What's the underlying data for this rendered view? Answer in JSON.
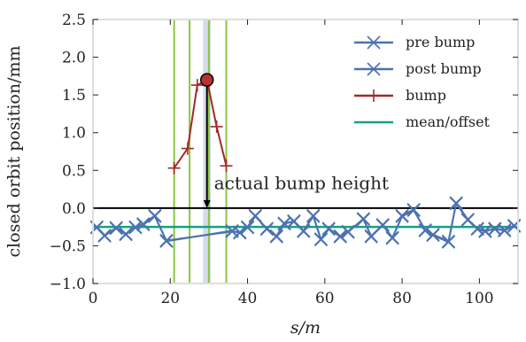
{
  "chart_data": {
    "type": "line",
    "xlabel": "s/m",
    "ylabel": "closed orbit position/mm",
    "xlim": [
      0,
      110
    ],
    "ylim": [
      -1.0,
      2.5
    ],
    "xticks": [
      0,
      20,
      40,
      60,
      80,
      100
    ],
    "yticks": [
      -1.0,
      -0.5,
      0.0,
      0.5,
      1.0,
      1.5,
      2.0,
      2.5
    ],
    "xtick_labels": [
      "0",
      "20",
      "40",
      "60",
      "80",
      "100"
    ],
    "ytick_labels": [
      "−1.0",
      "−0.5",
      "0.0",
      "0.5",
      "1.0",
      "1.5",
      "2.0",
      "2.5"
    ],
    "grid": false,
    "legend_position": "top-right",
    "series": [
      {
        "name": "pre bump",
        "color": "#4c72b0",
        "marker": "x",
        "x": [
          1,
          3,
          6,
          8.5,
          11,
          13,
          16,
          19,
          36,
          38,
          40,
          42,
          45,
          47.5,
          49.5,
          52,
          54.5,
          57,
          59,
          61,
          64,
          66,
          70,
          72,
          75,
          77.5,
          80,
          83,
          86,
          88,
          92,
          94,
          97,
          99.5,
          101.5,
          104,
          106.5,
          109
        ],
        "y": [
          -0.25,
          -0.36,
          -0.27,
          -0.35,
          -0.25,
          -0.21,
          -0.1,
          -0.44,
          -0.3,
          -0.33,
          -0.25,
          -0.1,
          -0.28,
          -0.37,
          -0.2,
          -0.18,
          -0.31,
          -0.1,
          -0.42,
          -0.27,
          -0.38,
          -0.32,
          -0.14,
          -0.38,
          -0.22,
          -0.4,
          -0.1,
          -0.02,
          -0.3,
          -0.36,
          -0.45,
          0.07,
          -0.15,
          -0.28,
          -0.31,
          -0.27,
          -0.3,
          -0.23
        ]
      },
      {
        "name": "post bump",
        "color": "#4c72b0",
        "marker": "x",
        "x": [
          1,
          3,
          6,
          8.5,
          11,
          13,
          16,
          19,
          36,
          38,
          40,
          42,
          45,
          47.5,
          49.5,
          52,
          54.5,
          57,
          59,
          61,
          64,
          66,
          70,
          72,
          75,
          77.5,
          80,
          83,
          86,
          88,
          92,
          94,
          97,
          99.5,
          101.5,
          104,
          106.5,
          109
        ],
        "y": [
          -0.26,
          -0.37,
          -0.26,
          -0.34,
          -0.26,
          -0.22,
          -0.11,
          -0.43,
          -0.31,
          -0.32,
          -0.26,
          -0.11,
          -0.27,
          -0.38,
          -0.21,
          -0.17,
          -0.3,
          -0.11,
          -0.41,
          -0.28,
          -0.37,
          -0.31,
          -0.15,
          -0.37,
          -0.23,
          -0.39,
          -0.11,
          -0.03,
          -0.29,
          -0.35,
          -0.44,
          0.06,
          -0.16,
          -0.27,
          -0.3,
          -0.28,
          -0.29,
          -0.24
        ]
      },
      {
        "name": "bump",
        "color": "#a12a2a",
        "marker": "+",
        "x": [
          21,
          24.5,
          27,
          29.5,
          32,
          34.5
        ],
        "y": [
          0.53,
          0.79,
          1.63,
          1.7,
          1.08,
          0.56
        ]
      },
      {
        "name": "mean/offset",
        "color": "#16a085",
        "marker": "none",
        "x": [
          0,
          110
        ],
        "y": [
          -0.25,
          -0.25
        ]
      }
    ],
    "reference_line": {
      "y": 0.0,
      "color": "#000000"
    },
    "vertical_lines": {
      "x": [
        21,
        25,
        30,
        34.5
      ],
      "color": "#8cc63f"
    },
    "shaded_band": {
      "x": [
        28.5,
        30.5
      ],
      "color": "#ccd6e6"
    },
    "bump_peak_marker": {
      "x": 29.5,
      "y": 1.7,
      "color": "#b83232"
    },
    "annotation": {
      "text": "actual bump height",
      "arrow_x": 29.5,
      "arrow_y_from": 1.7,
      "arrow_y_to": 0.0
    }
  }
}
